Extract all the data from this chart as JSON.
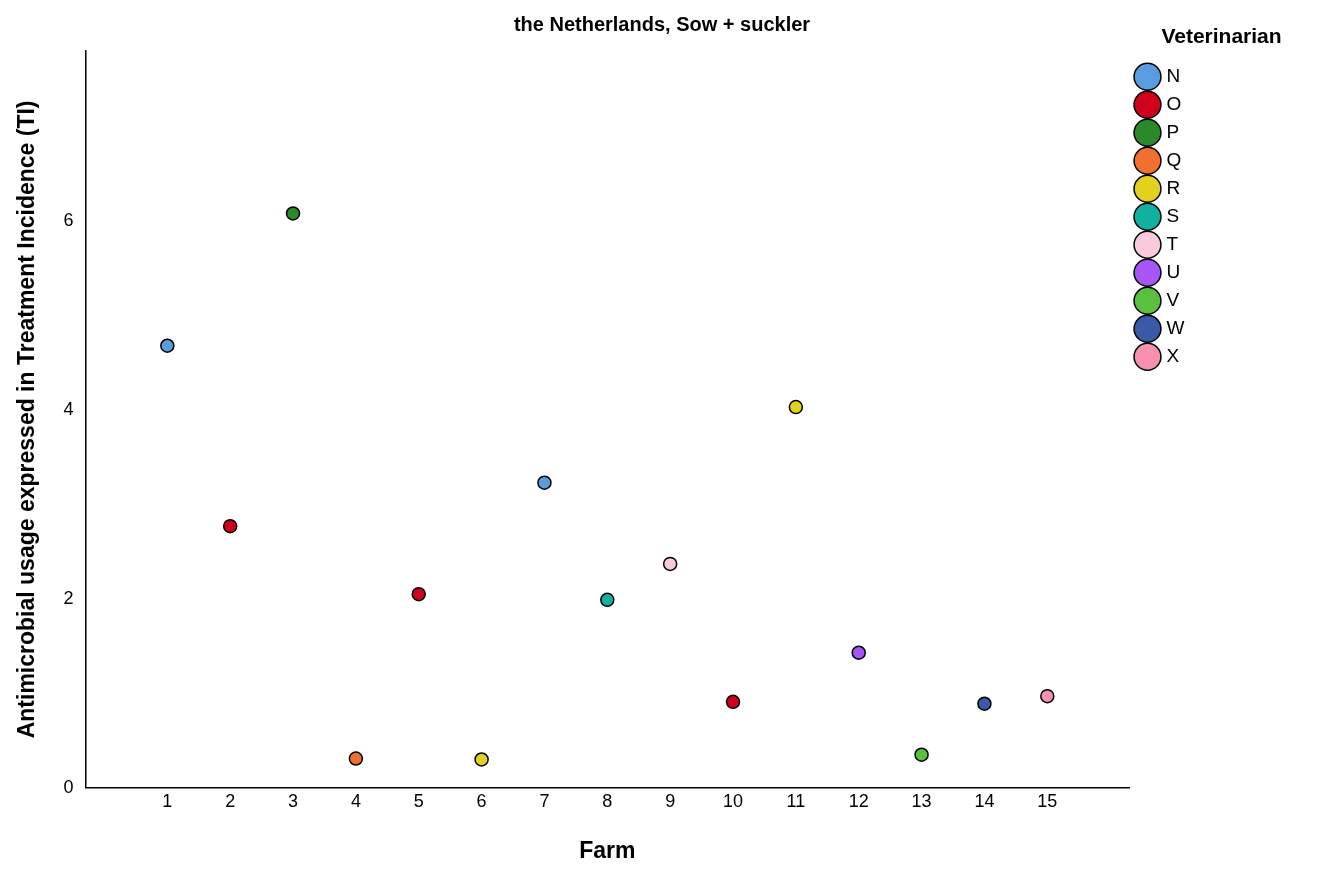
{
  "chart_data": {
    "type": "scatter",
    "title": "the Netherlands, Sow + suckler",
    "xlabel": "Farm",
    "ylabel": "Antimicrobial usage expressed in Treatment Incidence (TI)",
    "legend_title": "Veterinarian",
    "legend": "top right",
    "marker": "circle",
    "grid": false,
    "xlim": [
      -0.3,
      16.3
    ],
    "xticks": [
      1,
      2,
      3,
      4,
      5,
      6,
      7,
      8,
      9,
      10,
      11,
      12,
      13,
      14,
      15
    ],
    "ylim": [
      0,
      7.8
    ],
    "yticks": [
      0,
      2,
      4,
      6
    ],
    "series": [
      {
        "name": "N",
        "color": "#5b9be0",
        "x": [
          1,
          7
        ],
        "values": [
          4.68,
          3.23
        ]
      },
      {
        "name": "O",
        "color": "#d0021b",
        "x": [
          2,
          5,
          10
        ],
        "values": [
          2.77,
          2.05,
          0.91
        ]
      },
      {
        "name": "P",
        "color": "#2a8a2a",
        "x": [
          3
        ],
        "values": [
          6.08
        ]
      },
      {
        "name": "Q",
        "color": "#f07030",
        "x": [
          4
        ],
        "values": [
          0.31
        ]
      },
      {
        "name": "R",
        "color": "#e2d21e",
        "x": [
          6,
          11
        ],
        "values": [
          0.3,
          4.03
        ]
      },
      {
        "name": "S",
        "color": "#12b0a0",
        "x": [
          8
        ],
        "values": [
          1.99
        ]
      },
      {
        "name": "T",
        "color": "#f8cadc",
        "x": [
          9
        ],
        "values": [
          2.37
        ]
      },
      {
        "name": "U",
        "color": "#a855f7",
        "x": [
          12
        ],
        "values": [
          1.43
        ]
      },
      {
        "name": "V",
        "color": "#5ac040",
        "x": [
          13
        ],
        "values": [
          0.35
        ]
      },
      {
        "name": "W",
        "color": "#3a5aa8",
        "x": [
          14
        ],
        "values": [
          0.89
        ]
      },
      {
        "name": "X",
        "color": "#f890b0",
        "x": [
          15
        ],
        "values": [
          0.97
        ]
      }
    ]
  }
}
